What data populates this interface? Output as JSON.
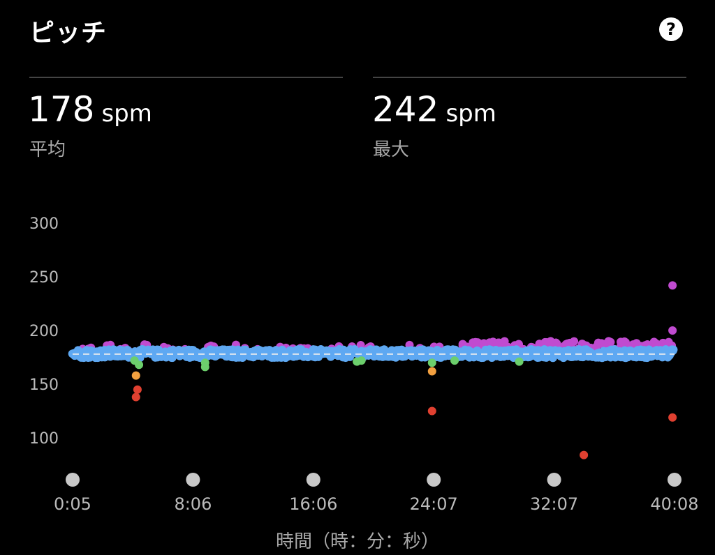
{
  "header": {
    "title": "ピッチ",
    "help_icon": "?"
  },
  "stats": [
    {
      "value": "178",
      "unit": "spm",
      "label": "平均"
    },
    {
      "value": "242",
      "unit": "spm",
      "label": "最大"
    }
  ],
  "chart_data": {
    "type": "scatter",
    "y_ticks": [
      "300",
      "250",
      "200",
      "150",
      "100"
    ],
    "x_ticks": [
      "0:05",
      "8:06",
      "16:06",
      "24:07",
      "32:07",
      "40:08"
    ],
    "xlabel": "時間（時：分：秒）",
    "ylim": [
      80,
      300
    ],
    "xlim": [
      0.083,
      40.133
    ],
    "average_line": 178,
    "colors": {
      "blue": "#5ea8f2",
      "purple": "#c04bd0",
      "green": "#6ccf6c",
      "orange": "#f2a040",
      "red": "#e04030",
      "avgline": "#dfe6ee"
    },
    "series": {
      "outliers": [
        {
          "x": 4.3,
          "y": 158,
          "c": "orange"
        },
        {
          "x": 4.4,
          "y": 145,
          "c": "red"
        },
        {
          "x": 4.3,
          "y": 138,
          "c": "red"
        },
        {
          "x": 4.2,
          "y": 172,
          "c": "green"
        },
        {
          "x": 4.5,
          "y": 168,
          "c": "green"
        },
        {
          "x": 8.9,
          "y": 166,
          "c": "green"
        },
        {
          "x": 8.9,
          "y": 170,
          "c": "green"
        },
        {
          "x": 19.0,
          "y": 171,
          "c": "green"
        },
        {
          "x": 19.3,
          "y": 172,
          "c": "green"
        },
        {
          "x": 24.0,
          "y": 170,
          "c": "green"
        },
        {
          "x": 24.0,
          "y": 162,
          "c": "orange"
        },
        {
          "x": 24.0,
          "y": 125,
          "c": "red"
        },
        {
          "x": 25.5,
          "y": 172,
          "c": "green"
        },
        {
          "x": 29.8,
          "y": 171,
          "c": "green"
        },
        {
          "x": 34.1,
          "y": 84,
          "c": "red"
        },
        {
          "x": 40.0,
          "y": 242,
          "c": "purple"
        },
        {
          "x": 40.0,
          "y": 200,
          "c": "purple"
        },
        {
          "x": 40.0,
          "y": 119,
          "c": "red"
        }
      ]
    }
  }
}
